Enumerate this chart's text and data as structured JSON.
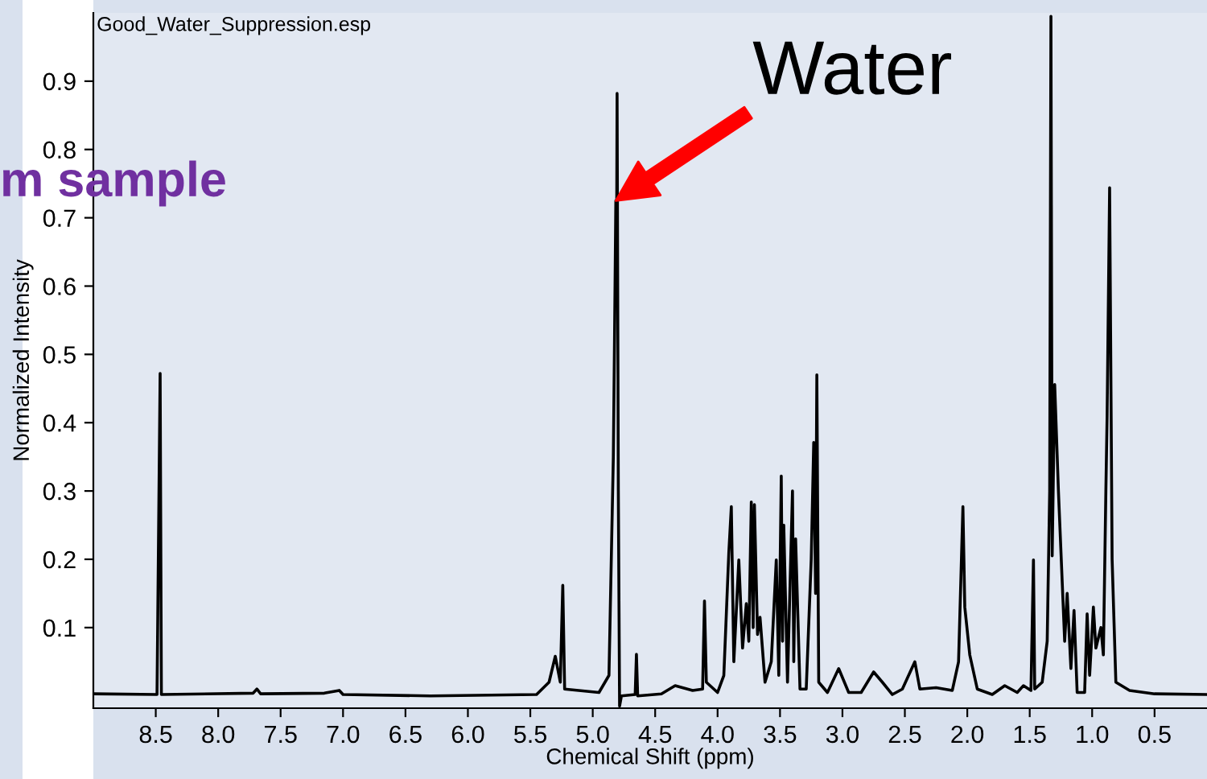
{
  "chart_data": {
    "type": "line",
    "title": "Good_Water_Suppression.esp",
    "xlabel": "Chemical Shift (ppm)",
    "ylabel": "Normalized Intensity",
    "annotations": [
      {
        "text": "Water",
        "x": 4.815,
        "y": 0.725
      },
      "m sample"
    ],
    "xlim": [
      9.0,
      0.08
    ],
    "ylim": [
      -0.018,
      1.0
    ],
    "xticks": [
      8.5,
      {
        "value": 8,
        "label": "8.0"
      },
      7.5,
      {
        "value": 7,
        "label": "7.0"
      },
      6.5,
      {
        "value": 6,
        "label": "6.0"
      },
      5.5,
      {
        "value": 5,
        "label": "5.0"
      },
      4.5,
      {
        "value": 4,
        "label": "4.0"
      },
      3.5,
      {
        "value": 3,
        "label": "3.0"
      },
      2.5,
      {
        "value": 2,
        "label": "2.0"
      },
      1.5,
      {
        "value": 1,
        "label": "1.0"
      },
      0.5
    ],
    "yticks": [
      0.1,
      0.2,
      0.3,
      0.4,
      0.5,
      0.6,
      0.7,
      0.8,
      0.9
    ],
    "grid": false,
    "legend": false,
    "marker": "none",
    "line_style": "solid",
    "series": [
      {
        "color": "#000000",
        "x": [
          9.0,
          8.49,
          8.465,
          8.455,
          7.72,
          7.69,
          7.66,
          7.15,
          7.03,
          7.0,
          6.3,
          5.45,
          5.35,
          5.3,
          5.26,
          5.24,
          5.225,
          4.95,
          4.87,
          4.835,
          4.825,
          4.815,
          4.81,
          4.805,
          4.795,
          4.785,
          4.77,
          4.66,
          4.65,
          4.64,
          4.45,
          4.34,
          4.2,
          4.12,
          4.105,
          4.09,
          4.0,
          3.95,
          3.91,
          3.89,
          3.87,
          3.83,
          3.8,
          3.77,
          3.75,
          3.73,
          3.715,
          3.705,
          3.68,
          3.66,
          3.62,
          3.57,
          3.53,
          3.51,
          3.49,
          3.48,
          3.47,
          3.44,
          3.4,
          3.39,
          3.375,
          3.34,
          3.29,
          3.25,
          3.23,
          3.215,
          3.205,
          3.19,
          3.12,
          3.03,
          2.95,
          2.85,
          2.75,
          2.68,
          2.6,
          2.52,
          2.42,
          2.38,
          2.25,
          2.12,
          2.07,
          2.035,
          2.02,
          1.98,
          1.92,
          1.8,
          1.7,
          1.6,
          1.55,
          1.49,
          1.47,
          1.46,
          1.4,
          1.36,
          1.34,
          1.33,
          1.32,
          1.3,
          1.27,
          1.22,
          1.2,
          1.17,
          1.145,
          1.12,
          1.06,
          1.04,
          1.02,
          0.99,
          0.97,
          0.93,
          0.91,
          0.89,
          0.88,
          0.86,
          0.84,
          0.81,
          0.7,
          0.5,
          0.08
        ],
        "values": [
          0.003,
          0.002,
          0.472,
          0.002,
          0.004,
          0.01,
          0.003,
          0.004,
          0.008,
          0.002,
          0.0,
          0.002,
          0.02,
          0.058,
          0.02,
          0.162,
          0.01,
          0.005,
          0.03,
          0.35,
          0.53,
          0.725,
          0.6,
          0.882,
          0.3,
          -0.015,
          0.0,
          0.002,
          0.061,
          0.0,
          0.003,
          0.015,
          0.008,
          0.01,
          0.139,
          0.02,
          0.005,
          0.03,
          0.21,
          0.277,
          0.05,
          0.199,
          0.07,
          0.135,
          0.08,
          0.284,
          0.1,
          0.28,
          0.09,
          0.115,
          0.02,
          0.05,
          0.199,
          0.03,
          0.322,
          0.08,
          0.25,
          0.02,
          0.3,
          0.05,
          0.23,
          0.01,
          0.01,
          0.2,
          0.371,
          0.15,
          0.47,
          0.02,
          0.005,
          0.04,
          0.005,
          0.005,
          0.035,
          0.02,
          0.002,
          0.01,
          0.05,
          0.01,
          0.012,
          0.008,
          0.05,
          0.277,
          0.13,
          0.06,
          0.01,
          0.002,
          0.015,
          0.005,
          0.015,
          0.008,
          0.199,
          0.01,
          0.02,
          0.08,
          0.3,
          0.995,
          0.205,
          0.456,
          0.3,
          0.08,
          0.15,
          0.04,
          0.125,
          0.005,
          0.005,
          0.12,
          0.03,
          0.13,
          0.07,
          0.1,
          0.06,
          0.3,
          0.41,
          0.744,
          0.2,
          0.02,
          0.008,
          0.003,
          0.002
        ]
      }
    ]
  }
}
